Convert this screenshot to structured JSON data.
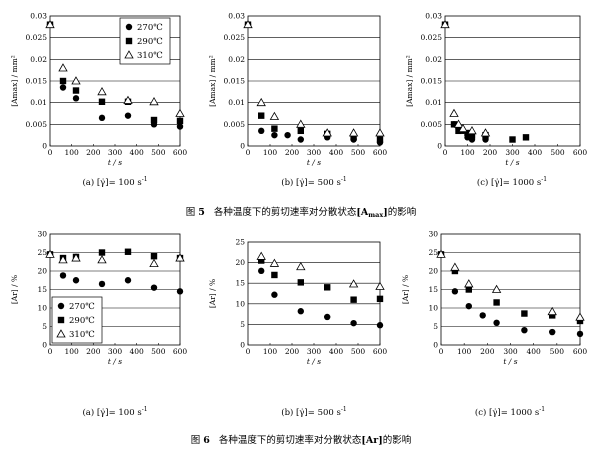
{
  "figures": [
    {
      "title": {
        "prefix": "图",
        "number": "5",
        "text": "各种温度下的剪切速率对分散状态",
        "bracket_open": "[",
        "var_main": "A",
        "var_sub": "max",
        "bracket_close": "]",
        "suffix": "的影响"
      },
      "panels": [
        {
          "caption": "(a)  [γ̇]= 100 s",
          "caption_sup": "-1"
        },
        {
          "caption": "(b)  [γ̇]= 500 s",
          "caption_sup": "-1"
        },
        {
          "caption": "(c)  [γ̇]= 1000 s",
          "caption_sup": "-1"
        }
      ]
    },
    {
      "title": {
        "prefix": "图",
        "number": "6",
        "text": "各种温度下的剪切速率对分散状态",
        "bracket_open": "[",
        "var_main": "Ar",
        "bracket_close": "]",
        "suffix": "的影响"
      },
      "panels": [
        {
          "caption": "(a)  [γ̇]= 100 s",
          "caption_sup": "-1"
        },
        {
          "caption": "(b)  [γ̇]= 500 s",
          "caption_sup": "-1"
        },
        {
          "caption": "(c)  [γ̇]= 1000 s",
          "caption_sup": "-1"
        }
      ]
    }
  ],
  "legend": {
    "items": [
      {
        "marker": "circle",
        "label": "270℃"
      },
      {
        "marker": "square",
        "label": "290℃"
      },
      {
        "marker": "triangle",
        "label": "310℃"
      }
    ]
  },
  "chart_data": [
    {
      "type": "scatter",
      "figure": 5,
      "panel": "a",
      "xlabel": "t / s",
      "ylabel": "[Amax] / mm²",
      "xlim": [
        0,
        600
      ],
      "ylim": [
        0,
        0.03
      ],
      "xticks": [
        "0",
        "100",
        "200",
        "300",
        "400",
        "500",
        "600"
      ],
      "yticks": [
        "0",
        "0.005",
        "0.01",
        "0.015",
        "0.02",
        "0.025",
        "0.03"
      ],
      "legend": "top-right",
      "series": [
        {
          "name": "270℃",
          "marker": "circle",
          "x": [
            0,
            60,
            120,
            240,
            360,
            480,
            600
          ],
          "y": [
            0.028,
            0.0135,
            0.011,
            0.0065,
            0.007,
            0.005,
            0.0045
          ]
        },
        {
          "name": "290℃",
          "marker": "square",
          "x": [
            0,
            60,
            120,
            240,
            360,
            480,
            600
          ],
          "y": [
            0.028,
            0.015,
            0.0128,
            0.0102,
            0.0102,
            0.006,
            0.0058
          ]
        },
        {
          "name": "310℃",
          "marker": "triangle",
          "x": [
            0,
            60,
            120,
            240,
            360,
            480,
            600
          ],
          "y": [
            0.028,
            0.018,
            0.015,
            0.0125,
            0.0105,
            0.0102,
            0.0075
          ]
        }
      ]
    },
    {
      "type": "scatter",
      "figure": 5,
      "panel": "b",
      "xlabel": "t / s",
      "ylabel": "[Amax] / mm²",
      "xlim": [
        0,
        600
      ],
      "ylim": [
        0,
        0.03
      ],
      "xticks": [
        "0",
        "100",
        "200",
        "300",
        "400",
        "500",
        "600"
      ],
      "yticks": [
        "0",
        "0.005",
        "0.01",
        "0.015",
        "0.02",
        "0.025",
        "0.03"
      ],
      "series": [
        {
          "name": "270℃",
          "marker": "circle",
          "x": [
            0,
            60,
            120,
            180,
            240,
            360,
            480,
            600
          ],
          "y": [
            0.028,
            0.0035,
            0.0025,
            0.0025,
            0.0015,
            0.002,
            0.0015,
            0.0008
          ]
        },
        {
          "name": "290℃",
          "marker": "square",
          "x": [
            0,
            60,
            120,
            240,
            360,
            480,
            600
          ],
          "y": [
            0.028,
            0.007,
            0.004,
            0.0035,
            0.0028,
            0.002,
            0.0015
          ]
        },
        {
          "name": "310℃",
          "marker": "triangle",
          "x": [
            0,
            60,
            120,
            240,
            360,
            480,
            600
          ],
          "y": [
            0.028,
            0.01,
            0.0068,
            0.005,
            0.003,
            0.003,
            0.003
          ]
        }
      ]
    },
    {
      "type": "scatter",
      "figure": 5,
      "panel": "c",
      "xlabel": "t / s",
      "ylabel": "[Amax] / mm²",
      "xlim": [
        0,
        600
      ],
      "ylim": [
        0,
        0.03
      ],
      "xticks": [
        "0",
        "100",
        "200",
        "300",
        "400",
        "500",
        "600"
      ],
      "yticks": [
        "0",
        "0.005",
        "0.01",
        "0.015",
        "0.02",
        "0.025",
        "0.03"
      ],
      "series": [
        {
          "name": "270℃",
          "marker": "circle",
          "x": [
            0,
            40,
            60,
            80,
            100,
            120,
            180
          ],
          "y": [
            0.028,
            0.005,
            0.004,
            0.0035,
            0.002,
            0.0015,
            0.0015
          ]
        },
        {
          "name": "290℃",
          "marker": "square",
          "x": [
            0,
            40,
            60,
            100,
            120,
            180,
            300,
            360
          ],
          "y": [
            0.028,
            0.005,
            0.0035,
            0.003,
            0.0025,
            0.0025,
            0.0015,
            0.002
          ]
        },
        {
          "name": "310℃",
          "marker": "triangle",
          "x": [
            0,
            40,
            60,
            80,
            120,
            180
          ],
          "y": [
            0.028,
            0.0075,
            0.005,
            0.004,
            0.0035,
            0.003
          ]
        }
      ]
    },
    {
      "type": "scatter",
      "figure": 6,
      "panel": "a",
      "xlabel": "t / s",
      "ylabel": "[Ar] / %",
      "xlim": [
        0,
        600
      ],
      "ylim": [
        0,
        30
      ],
      "xticks": [
        "0",
        "100",
        "200",
        "300",
        "400",
        "500",
        "600"
      ],
      "yticks": [
        "0",
        "5",
        "10",
        "15",
        "20",
        "25",
        "30"
      ],
      "legend": "bottom-left",
      "series": [
        {
          "name": "270℃",
          "marker": "circle",
          "x": [
            0,
            60,
            120,
            240,
            360,
            480,
            600
          ],
          "y": [
            24.5,
            18.8,
            17.5,
            16.5,
            17.5,
            15.5,
            14.5
          ]
        },
        {
          "name": "290℃",
          "marker": "square",
          "x": [
            0,
            60,
            120,
            240,
            360,
            480,
            600
          ],
          "y": [
            24.5,
            23.5,
            23.8,
            25,
            25.2,
            24,
            23.5
          ]
        },
        {
          "name": "310℃",
          "marker": "triangle",
          "x": [
            0,
            60,
            120,
            240,
            480,
            600
          ],
          "y": [
            24.5,
            23,
            23.5,
            23,
            22,
            23.5
          ]
        }
      ]
    },
    {
      "type": "scatter",
      "figure": 6,
      "panel": "b",
      "xlabel": "t / s",
      "ylabel": "[Ar] / %",
      "xlim": [
        0,
        600
      ],
      "ylim": [
        0,
        25
      ],
      "xticks": [
        "0",
        "100",
        "200",
        "300",
        "400",
        "500",
        "600"
      ],
      "yticks": [
        "0",
        "5",
        "10",
        "15",
        "20",
        "25"
      ],
      "series": [
        {
          "name": "270℃",
          "marker": "circle",
          "x": [
            60,
            120,
            240,
            360,
            480,
            600
          ],
          "y": [
            18,
            12.2,
            8.2,
            6.8,
            5.3,
            4.8
          ]
        },
        {
          "name": "290℃",
          "marker": "square",
          "x": [
            60,
            120,
            240,
            360,
            480,
            600
          ],
          "y": [
            20.5,
            17,
            15.2,
            14,
            11,
            11.2
          ]
        },
        {
          "name": "310℃",
          "marker": "triangle",
          "x": [
            60,
            120,
            240,
            480,
            600
          ],
          "y": [
            21.5,
            19.8,
            19,
            14.8,
            14.2
          ]
        }
      ]
    },
    {
      "type": "scatter",
      "figure": 6,
      "panel": "c",
      "xlabel": "t / s",
      "ylabel": "[Ar] / %",
      "xlim": [
        0,
        600
      ],
      "ylim": [
        0,
        30
      ],
      "xticks": [
        "0",
        "100",
        "200",
        "300",
        "400",
        "500",
        "600"
      ],
      "yticks": [
        "0",
        "5",
        "10",
        "15",
        "20",
        "25",
        "30"
      ],
      "series": [
        {
          "name": "270℃",
          "marker": "circle",
          "x": [
            0,
            60,
            120,
            180,
            240,
            360,
            480,
            600
          ],
          "y": [
            24.5,
            14.5,
            10.5,
            8,
            6,
            4,
            3.5,
            3
          ]
        },
        {
          "name": "290℃",
          "marker": "square",
          "x": [
            0,
            60,
            120,
            240,
            360,
            480,
            600
          ],
          "y": [
            24.5,
            20,
            15,
            11.5,
            8.5,
            8,
            6.5
          ]
        },
        {
          "name": "310℃",
          "marker": "triangle",
          "x": [
            0,
            60,
            120,
            240,
            480,
            600
          ],
          "y": [
            24.5,
            21,
            16.5,
            15,
            9,
            7.5
          ]
        }
      ]
    }
  ]
}
